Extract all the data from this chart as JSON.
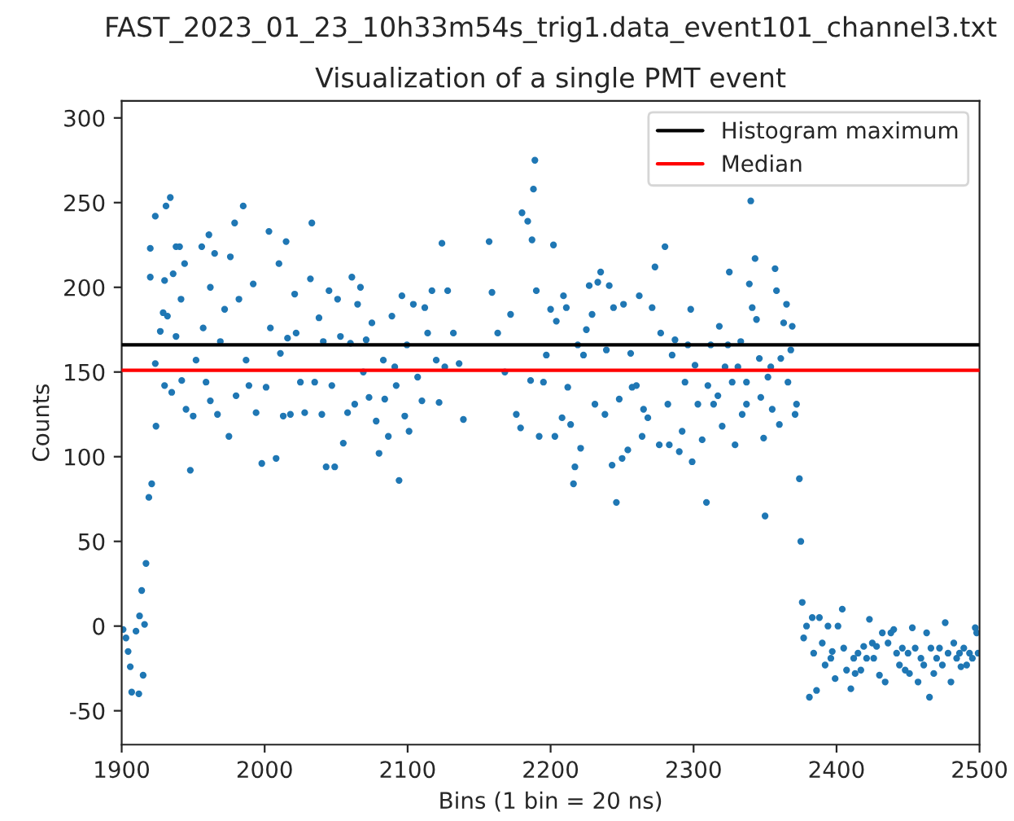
{
  "chart_data": {
    "type": "scatter",
    "title": "FAST_2023_01_23_10h33m54s_trig1.data_event101_channel3.txt",
    "subtitle": "Visualization of a single PMT event",
    "xlabel": "Bins (1 bin = 20 ns)",
    "ylabel": "Counts",
    "xlim": [
      1900,
      2500
    ],
    "ylim": [
      -70,
      310
    ],
    "xticks": [
      1900,
      2000,
      2100,
      2200,
      2300,
      2400,
      2500
    ],
    "yticks": [
      -50,
      0,
      50,
      100,
      150,
      200,
      250,
      300
    ],
    "grid": false,
    "legend": "top right",
    "marker": "circle",
    "ref_lines": [
      {
        "axis": "y",
        "value": 166,
        "label": "Histogram maximum",
        "color": "#000000",
        "line_style": "solid"
      },
      {
        "axis": "y",
        "value": 151,
        "label": "Median",
        "color": "#ff0000",
        "line_style": "solid"
      }
    ],
    "series": [
      {
        "color": "#1f77b4",
        "x": [
          1901,
          1903,
          1904.5,
          1906,
          1907,
          1910,
          1912,
          1912.5,
          1914,
          1915,
          1916,
          1917,
          1919,
          1921,
          1920,
          1920,
          1923.5,
          1924,
          1923.5,
          1927,
          1929,
          1930,
          1930,
          1931,
          1932,
          1934,
          1935,
          1936,
          1938,
          1938,
          1940.5,
          1941.5,
          1942,
          1944,
          1945,
          1948,
          1950,
          1952,
          1956,
          1957,
          1959,
          1961,
          1962,
          1962,
          1965,
          1967,
          1969,
          1972,
          1975,
          1976,
          1979,
          1980,
          1982,
          1985,
          1987,
          1989,
          1992,
          1994,
          1998,
          2001,
          2003,
          2004,
          2008,
          2010,
          2011,
          2013,
          2015,
          2016,
          2018,
          2021,
          2022,
          2025,
          2028,
          2033,
          2032,
          2035,
          2038,
          2040,
          2041,
          2043,
          2045,
          2047,
          2049,
          2051,
          2053,
          2055,
          2058,
          2060,
          2061,
          2063,
          2065,
          2067,
          2069,
          2071,
          2073,
          2075,
          2078,
          2080,
          2083,
          2084,
          2086.5,
          2089,
          2091,
          2092,
          2094,
          2096,
          2098,
          2099.5,
          2101,
          2104,
          2107,
          2110,
          2112,
          2114,
          2117,
          2120,
          2122,
          2124,
          2126,
          2128,
          2132,
          2136,
          2139,
          2157,
          2159,
          2163,
          2168,
          2172,
          2176,
          2179,
          2180,
          2184,
          2186,
          2187,
          2188,
          2189,
          2190,
          2192,
          2195,
          2197,
          2200,
          2202,
          2203,
          2204,
          2208,
          2209,
          2211,
          2212,
          2214,
          2216,
          2217,
          2219,
          2221,
          2223,
          2225,
          2227,
          2229,
          2231,
          2233,
          2235,
          2238,
          2239,
          2241,
          2243,
          2244,
          2246,
          2248,
          2250,
          2251,
          2254,
          2256,
          2257,
          2260,
          2262,
          2264,
          2265,
          2268,
          2271,
          2273,
          2276,
          2277,
          2280,
          2282,
          2283,
          2285,
          2287,
          2290,
          2292,
          2294,
          2296,
          2298,
          2299,
          2301,
          2303,
          2306,
          2309,
          2310,
          2312,
          2314,
          2317,
          2318,
          2320,
          2322,
          2324,
          2325,
          2327,
          2329,
          2331,
          2333,
          2334,
          2337,
          2337,
          2339,
          2340,
          2341,
          2343,
          2344,
          2346,
          2347,
          2349,
          2350,
          2352,
          2354,
          2355,
          2357,
          2358,
          2360,
          2361,
          2363,
          2365,
          2366,
          2368,
          2369,
          2371,
          2372,
          2374,
          2375,
          2376,
          2377,
          2379,
          2381,
          2383,
          2384,
          2386,
          2388,
          2390,
          2392,
          2394,
          2396,
          2397,
          2399,
          2401,
          2404,
          2405,
          2407,
          2410,
          2412,
          2413,
          2415,
          2417,
          2419,
          2421,
          2423,
          2425,
          2426,
          2428,
          2430,
          2432,
          2434,
          2436,
          2438,
          2440,
          2442,
          2444,
          2446,
          2448,
          2450,
          2451,
          2453,
          2455,
          2457,
          2459,
          2461,
          2463,
          2465,
          2466,
          2468,
          2470,
          2472,
          2474,
          2476,
          2478,
          2480,
          2482,
          2484,
          2486,
          2487,
          2489,
          2491,
          2493,
          2495,
          2497,
          2498,
          2499
        ],
        "values": [
          -2,
          -7,
          -15,
          -24,
          -39,
          -3,
          -40,
          6,
          21,
          -29,
          1,
          37,
          76,
          84,
          206,
          223,
          242,
          118,
          155,
          174,
          185,
          204,
          142,
          248,
          183,
          253,
          138,
          208,
          224,
          171,
          224,
          193,
          145,
          214,
          128,
          92,
          124,
          157,
          224,
          176,
          144,
          231,
          200,
          133,
          220,
          125,
          168,
          187,
          112,
          218,
          238,
          136,
          193,
          248,
          157,
          142,
          202,
          126,
          96,
          141,
          233,
          176,
          99,
          214,
          161,
          124,
          227,
          170,
          125,
          196,
          173,
          144,
          126,
          238,
          205,
          144,
          182,
          125,
          168,
          94,
          198,
          142,
          94,
          193,
          171,
          108,
          126,
          167,
          206,
          131,
          190,
          200,
          150,
          169,
          135,
          179,
          121,
          102,
          157,
          134,
          112,
          183,
          153,
          142,
          86,
          195,
          124,
          166,
          115,
          190,
          147,
          133,
          188,
          173,
          198,
          157,
          132,
          226,
          153,
          198,
          173,
          155,
          122,
          227,
          197,
          173,
          150,
          184,
          125,
          117,
          244,
          239,
          145,
          228,
          258,
          275,
          198,
          112,
          144,
          160,
          187,
          225,
          112,
          180,
          123,
          195,
          188,
          141,
          119,
          84,
          94,
          166,
          105,
          160,
          175,
          201,
          184,
          131,
          203,
          209,
          125,
          163,
          201,
          95,
          188,
          73,
          134,
          99,
          190,
          104,
          161,
          141,
          142,
          195,
          112,
          128,
          123,
          188,
          212,
          107,
          173,
          224,
          131,
          107,
          160,
          169,
          103,
          115,
          144,
          166,
          187,
          97,
          154,
          131,
          110,
          73,
          142,
          166,
          131,
          136,
          177,
          118,
          153,
          166,
          209,
          144,
          107,
          153,
          168,
          125,
          144,
          131,
          202,
          251,
          188,
          217,
          181,
          158,
          135,
          111,
          65,
          147,
          153,
          128,
          211,
          198,
          119,
          158,
          179,
          190,
          144,
          163,
          177,
          125,
          131,
          87,
          50,
          14,
          -7,
          0,
          -42,
          5,
          -16,
          -38,
          5,
          -10,
          -23,
          0,
          -19,
          -15,
          -31,
          0,
          10,
          -13,
          -26,
          -37,
          -19,
          -28,
          -16,
          -26,
          -12,
          -19,
          4,
          -10,
          -19,
          -12,
          -29,
          -4,
          -33,
          -10,
          -4,
          -2,
          -16,
          -23,
          -13,
          -26,
          -16,
          -28,
          -1,
          -13,
          -33,
          -19,
          -23,
          -4,
          -42,
          -13,
          -28,
          -19,
          -13,
          -23,
          2,
          -16,
          -33,
          -10,
          -19,
          -16,
          -24,
          -13,
          -23,
          -16,
          -19,
          -1,
          -4,
          -16
        ]
      }
    ]
  }
}
